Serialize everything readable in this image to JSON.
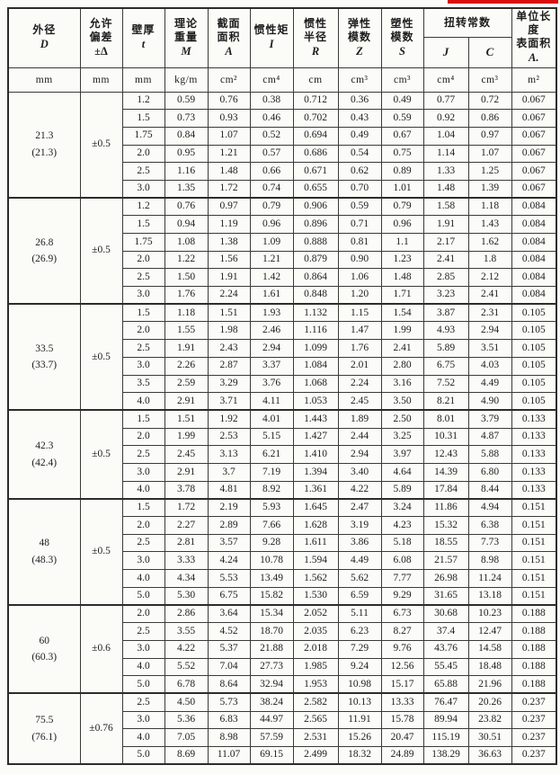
{
  "annotation": {
    "red_mark_color": "#d80f0a"
  },
  "table": {
    "headers": {
      "d_zh": "外径",
      "d_sym": "D",
      "tol_zh": "允许\n偏差",
      "tol_sym": "±Δ",
      "t_zh": "壁厚",
      "t_sym": "t",
      "m_zh": "理论\n重量",
      "m_sym": "M",
      "a_zh": "截面\n面积",
      "a_sym": "A",
      "i_zh": "惯性矩",
      "i_sym": "I",
      "r_zh": "惯性\n半径",
      "r_sym": "R",
      "z_zh": "弹性\n模数",
      "z_sym": "Z",
      "s_zh": "塑性\n模数",
      "s_sym": "S",
      "torsion_zh": "扭转常数",
      "j_sym": "J",
      "c_sym": "C",
      "surf_zh": "单位长度\n表面积",
      "surf_sym": "A."
    },
    "units": [
      "mm",
      "mm",
      "mm",
      "kg/m",
      "cm²",
      "cm⁴",
      "cm",
      "cm³",
      "cm³",
      "cm⁴",
      "cm³",
      "m²"
    ],
    "groups": [
      {
        "d": "21.3",
        "d_alt": "(21.3)",
        "tol": "±0.5",
        "rows": [
          [
            "1.2",
            "0.59",
            "0.76",
            "0.38",
            "0.712",
            "0.36",
            "0.49",
            "0.77",
            "0.72",
            "0.067"
          ],
          [
            "1.5",
            "0.73",
            "0.93",
            "0.46",
            "0.702",
            "0.43",
            "0.59",
            "0.92",
            "0.86",
            "0.067"
          ],
          [
            "1.75",
            "0.84",
            "1.07",
            "0.52",
            "0.694",
            "0.49",
            "0.67",
            "1.04",
            "0.97",
            "0.067"
          ],
          [
            "2.0",
            "0.95",
            "1.21",
            "0.57",
            "0.686",
            "0.54",
            "0.75",
            "1.14",
            "1.07",
            "0.067"
          ],
          [
            "2.5",
            "1.16",
            "1.48",
            "0.66",
            "0.671",
            "0.62",
            "0.89",
            "1.33",
            "1.25",
            "0.067"
          ],
          [
            "3.0",
            "1.35",
            "1.72",
            "0.74",
            "0.655",
            "0.70",
            "1.01",
            "1.48",
            "1.39",
            "0.067"
          ]
        ]
      },
      {
        "d": "26.8",
        "d_alt": "(26.9)",
        "tol": "±0.5",
        "rows": [
          [
            "1.2",
            "0.76",
            "0.97",
            "0.79",
            "0.906",
            "0.59",
            "0.79",
            "1.58",
            "1.18",
            "0.084"
          ],
          [
            "1.5",
            "0.94",
            "1.19",
            "0.96",
            "0.896",
            "0.71",
            "0.96",
            "1.91",
            "1.43",
            "0.084"
          ],
          [
            "1.75",
            "1.08",
            "1.38",
            "1.09",
            "0.888",
            "0.81",
            "1.1",
            "2.17",
            "1.62",
            "0.084"
          ],
          [
            "2.0",
            "1.22",
            "1.56",
            "1.21",
            "0.879",
            "0.90",
            "1.23",
            "2.41",
            "1.8",
            "0.084"
          ],
          [
            "2.5",
            "1.50",
            "1.91",
            "1.42",
            "0.864",
            "1.06",
            "1.48",
            "2.85",
            "2.12",
            "0.084"
          ],
          [
            "3.0",
            "1.76",
            "2.24",
            "1.61",
            "0.848",
            "1.20",
            "1.71",
            "3.23",
            "2.41",
            "0.084"
          ]
        ]
      },
      {
        "d": "33.5",
        "d_alt": "(33.7)",
        "tol": "±0.5",
        "rows": [
          [
            "1.5",
            "1.18",
            "1.51",
            "1.93",
            "1.132",
            "1.15",
            "1.54",
            "3.87",
            "2.31",
            "0.105"
          ],
          [
            "2.0",
            "1.55",
            "1.98",
            "2.46",
            "1.116",
            "1.47",
            "1.99",
            "4.93",
            "2.94",
            "0.105"
          ],
          [
            "2.5",
            "1.91",
            "2.43",
            "2.94",
            "1.099",
            "1.76",
            "2.41",
            "5.89",
            "3.51",
            "0.105"
          ],
          [
            "3.0",
            "2.26",
            "2.87",
            "3.37",
            "1.084",
            "2.01",
            "2.80",
            "6.75",
            "4.03",
            "0.105"
          ],
          [
            "3.5",
            "2.59",
            "3.29",
            "3.76",
            "1.068",
            "2.24",
            "3.16",
            "7.52",
            "4.49",
            "0.105"
          ],
          [
            "4.0",
            "2.91",
            "3.71",
            "4.11",
            "1.053",
            "2.45",
            "3.50",
            "8.21",
            "4.90",
            "0.105"
          ]
        ]
      },
      {
        "d": "42.3",
        "d_alt": "(42.4)",
        "tol": "±0.5",
        "rows": [
          [
            "1.5",
            "1.51",
            "1.92",
            "4.01",
            "1.443",
            "1.89",
            "2.50",
            "8.01",
            "3.79",
            "0.133"
          ],
          [
            "2.0",
            "1.99",
            "2.53",
            "5.15",
            "1.427",
            "2.44",
            "3.25",
            "10.31",
            "4.87",
            "0.133"
          ],
          [
            "2.5",
            "2.45",
            "3.13",
            "6.21",
            "1.410",
            "2.94",
            "3.97",
            "12.43",
            "5.88",
            "0.133"
          ],
          [
            "3.0",
            "2.91",
            "3.7",
            "7.19",
            "1.394",
            "3.40",
            "4.64",
            "14.39",
            "6.80",
            "0.133"
          ],
          [
            "4.0",
            "3.78",
            "4.81",
            "8.92",
            "1.361",
            "4.22",
            "5.89",
            "17.84",
            "8.44",
            "0.133"
          ]
        ]
      },
      {
        "d": "48",
        "d_alt": "(48.3)",
        "tol": "±0.5",
        "rows": [
          [
            "1.5",
            "1.72",
            "2.19",
            "5.93",
            "1.645",
            "2.47",
            "3.24",
            "11.86",
            "4.94",
            "0.151"
          ],
          [
            "2.0",
            "2.27",
            "2.89",
            "7.66",
            "1.628",
            "3.19",
            "4.23",
            "15.32",
            "6.38",
            "0.151"
          ],
          [
            "2.5",
            "2.81",
            "3.57",
            "9.28",
            "1.611",
            "3.86",
            "5.18",
            "18.55",
            "7.73",
            "0.151"
          ],
          [
            "3.0",
            "3.33",
            "4.24",
            "10.78",
            "1.594",
            "4.49",
            "6.08",
            "21.57",
            "8.98",
            "0.151"
          ],
          [
            "4.0",
            "4.34",
            "5.53",
            "13.49",
            "1.562",
            "5.62",
            "7.77",
            "26.98",
            "11.24",
            "0.151"
          ],
          [
            "5.0",
            "5.30",
            "6.75",
            "15.82",
            "1.530",
            "6.59",
            "9.29",
            "31.65",
            "13.18",
            "0.151"
          ]
        ]
      },
      {
        "d": "60",
        "d_alt": "(60.3)",
        "tol": "±0.6",
        "rows": [
          [
            "2.0",
            "2.86",
            "3.64",
            "15.34",
            "2.052",
            "5.11",
            "6.73",
            "30.68",
            "10.23",
            "0.188"
          ],
          [
            "2.5",
            "3.55",
            "4.52",
            "18.70",
            "2.035",
            "6.23",
            "8.27",
            "37.4",
            "12.47",
            "0.188"
          ],
          [
            "3.0",
            "4.22",
            "5.37",
            "21.88",
            "2.018",
            "7.29",
            "9.76",
            "43.76",
            "14.58",
            "0.188"
          ],
          [
            "4.0",
            "5.52",
            "7.04",
            "27.73",
            "1.985",
            "9.24",
            "12.56",
            "55.45",
            "18.48",
            "0.188"
          ],
          [
            "5.0",
            "6.78",
            "8.64",
            "32.94",
            "1.953",
            "10.98",
            "15.17",
            "65.88",
            "21.96",
            "0.188"
          ]
        ]
      },
      {
        "d": "75.5",
        "d_alt": "(76.1)",
        "tol": "±0.76",
        "rows": [
          [
            "2.5",
            "4.50",
            "5.73",
            "38.24",
            "2.582",
            "10.13",
            "13.33",
            "76.47",
            "20.26",
            "0.237"
          ],
          [
            "3.0",
            "5.36",
            "6.83",
            "44.97",
            "2.565",
            "11.91",
            "15.78",
            "89.94",
            "23.82",
            "0.237"
          ],
          [
            "4.0",
            "7.05",
            "8.98",
            "57.59",
            "2.531",
            "15.26",
            "20.47",
            "115.19",
            "30.51",
            "0.237"
          ],
          [
            "5.0",
            "8.69",
            "11.07",
            "69.15",
            "2.499",
            "18.32",
            "24.89",
            "138.29",
            "36.63",
            "0.237"
          ]
        ]
      }
    ]
  }
}
